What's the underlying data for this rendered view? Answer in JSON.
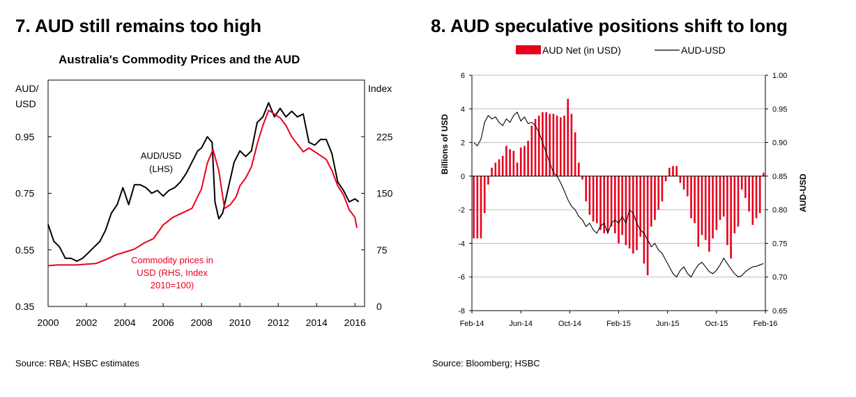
{
  "left": {
    "heading": "7. AUD still remains too high",
    "source": "Source: RBA; HSBC estimates"
  },
  "right": {
    "heading": "8. AUD speculative positions shift to long",
    "source": "Source: Bloomberg; HSBC"
  },
  "chart_data": [
    {
      "type": "line",
      "title": "Australia's Commodity Prices and the AUD",
      "y_left_label": "AUD/\nUSD",
      "y_left_label_lines": [
        "AUD/",
        "USD"
      ],
      "y_right_label": "Index",
      "xlim": [
        2000,
        2016.5
      ],
      "x_ticks": [
        "2000",
        "2002",
        "2004",
        "2006",
        "2008",
        "2010",
        "2012",
        "2014",
        "2016"
      ],
      "ylim_left": [
        0.35,
        1.15
      ],
      "y_left_ticks": [
        "0.35",
        "0.55",
        "0.75",
        "0.95"
      ],
      "ylim_right": [
        0,
        300
      ],
      "y_right_ticks": [
        "0",
        "75",
        "150",
        "225"
      ],
      "annotations": {
        "aud": [
          "AUD/USD",
          "(LHS)"
        ],
        "commodity": [
          "Commodity prices in",
          "USD (RHS, Index",
          "2010=100)"
        ]
      },
      "series": [
        {
          "name": "AUD/USD (LHS)",
          "axis": "left",
          "color": "#000000",
          "x": [
            2000.0,
            2000.3,
            2000.6,
            2000.9,
            2001.2,
            2001.5,
            2001.8,
            2002.1,
            2002.4,
            2002.7,
            2003.0,
            2003.3,
            2003.6,
            2003.9,
            2004.2,
            2004.5,
            2004.8,
            2005.1,
            2005.4,
            2005.7,
            2006.0,
            2006.3,
            2006.6,
            2006.9,
            2007.2,
            2007.5,
            2007.8,
            2008.0,
            2008.3,
            2008.55,
            2008.7,
            2008.9,
            2009.1,
            2009.4,
            2009.7,
            2010.0,
            2010.3,
            2010.6,
            2010.9,
            2011.2,
            2011.5,
            2011.8,
            2012.1,
            2012.4,
            2012.7,
            2013.0,
            2013.3,
            2013.6,
            2013.9,
            2014.2,
            2014.5,
            2014.8,
            2015.1,
            2015.4,
            2015.7,
            2016.0,
            2016.2
          ],
          "values": [
            0.64,
            0.58,
            0.56,
            0.52,
            0.52,
            0.51,
            0.52,
            0.54,
            0.56,
            0.58,
            0.62,
            0.68,
            0.71,
            0.77,
            0.71,
            0.78,
            0.78,
            0.77,
            0.75,
            0.76,
            0.74,
            0.76,
            0.77,
            0.79,
            0.82,
            0.86,
            0.9,
            0.91,
            0.95,
            0.93,
            0.72,
            0.66,
            0.68,
            0.77,
            0.86,
            0.9,
            0.88,
            0.9,
            1.0,
            1.02,
            1.07,
            1.02,
            1.05,
            1.02,
            1.04,
            1.02,
            1.03,
            0.93,
            0.92,
            0.94,
            0.94,
            0.89,
            0.79,
            0.76,
            0.72,
            0.73,
            0.72
          ]
        },
        {
          "name": "Commodity prices in USD (RHS, Index 2010=100)",
          "axis": "right",
          "color": "#e8001c",
          "x": [
            2000.0,
            2000.5,
            2001.0,
            2001.5,
            2002.0,
            2002.5,
            2003.0,
            2003.5,
            2004.0,
            2004.5,
            2005.0,
            2005.5,
            2006.0,
            2006.5,
            2007.0,
            2007.5,
            2008.0,
            2008.3,
            2008.6,
            2008.9,
            2009.2,
            2009.5,
            2009.8,
            2010.0,
            2010.3,
            2010.6,
            2010.9,
            2011.2,
            2011.5,
            2011.8,
            2012.1,
            2012.4,
            2012.7,
            2013.0,
            2013.3,
            2013.6,
            2013.9,
            2014.2,
            2014.5,
            2014.8,
            2015.1,
            2015.4,
            2015.7,
            2016.0,
            2016.1
          ],
          "values": [
            54,
            55,
            55,
            55,
            56,
            57,
            62,
            68,
            72,
            76,
            84,
            90,
            108,
            118,
            124,
            130,
            156,
            190,
            208,
            180,
            130,
            135,
            145,
            160,
            170,
            185,
            215,
            240,
            260,
            255,
            250,
            240,
            225,
            215,
            205,
            210,
            205,
            200,
            195,
            180,
            160,
            148,
            128,
            118,
            104
          ]
        }
      ]
    },
    {
      "type": "bar",
      "x_ticks": [
        "Feb-14",
        "Jun-14",
        "Oct-14",
        "Feb-15",
        "Jun-15",
        "Oct-15",
        "Feb-16"
      ],
      "y_left_label": "Billions of USD",
      "y_right_label": "AUD-USD",
      "ylim_left": [
        -8,
        6
      ],
      "y_left_ticks": [
        "6",
        "4",
        "2",
        "0",
        "-2",
        "-4",
        "-6",
        "-8"
      ],
      "ylim_right": [
        0.65,
        1.0
      ],
      "y_right_ticks": [
        "1.00",
        "0.95",
        "0.90",
        "0.85",
        "0.80",
        "0.75",
        "0.70",
        "0.65"
      ],
      "legend": {
        "placement": "top"
      },
      "series": [
        {
          "name": "AUD Net (in USD)",
          "type": "bar",
          "axis": "left",
          "color": "#e8001c",
          "values": [
            -3.7,
            -3.7,
            -3.7,
            -2.2,
            -0.5,
            0.5,
            0.8,
            1.0,
            1.2,
            1.8,
            1.6,
            1.5,
            0.8,
            1.7,
            1.8,
            2.1,
            3.0,
            3.4,
            3.6,
            3.8,
            3.8,
            3.7,
            3.7,
            3.6,
            3.5,
            3.6,
            4.6,
            3.7,
            2.6,
            0.8,
            -0.2,
            -1.5,
            -2.3,
            -2.7,
            -2.8,
            -3.2,
            -3.4,
            -3.3,
            -3.0,
            -3.4,
            -4.0,
            -3.5,
            -4.1,
            -4.3,
            -4.6,
            -4.4,
            -3.6,
            -5.2,
            -5.9,
            -3.0,
            -2.6,
            -2.0,
            -1.5,
            -0.3,
            0.5,
            0.6,
            0.6,
            -0.4,
            -0.8,
            -1.2,
            -2.5,
            -2.8,
            -4.2,
            -3.5,
            -3.8,
            -4.5,
            -3.7,
            -3.2,
            -2.6,
            -2.4,
            -4.1,
            -4.9,
            -3.4,
            -3.0,
            -0.8,
            -1.3,
            -2.1,
            -2.9,
            -2.5,
            -2.2,
            0.2
          ]
        },
        {
          "name": "AUD-USD",
          "type": "line",
          "axis": "right",
          "color": "#000000",
          "values": [
            0.9,
            0.895,
            0.905,
            0.93,
            0.94,
            0.935,
            0.938,
            0.93,
            0.925,
            0.935,
            0.93,
            0.94,
            0.945,
            0.932,
            0.938,
            0.928,
            0.93,
            0.925,
            0.915,
            0.9,
            0.885,
            0.87,
            0.855,
            0.85,
            0.84,
            0.828,
            0.815,
            0.805,
            0.8,
            0.79,
            0.785,
            0.775,
            0.78,
            0.77,
            0.765,
            0.776,
            0.78,
            0.765,
            0.78,
            0.785,
            0.78,
            0.79,
            0.78,
            0.8,
            0.795,
            0.78,
            0.77,
            0.765,
            0.755,
            0.745,
            0.75,
            0.74,
            0.735,
            0.725,
            0.715,
            0.705,
            0.7,
            0.71,
            0.715,
            0.705,
            0.7,
            0.71,
            0.718,
            0.722,
            0.715,
            0.708,
            0.705,
            0.71,
            0.718,
            0.728,
            0.72,
            0.712,
            0.705,
            0.7,
            0.702,
            0.708,
            0.712,
            0.715,
            0.716,
            0.718,
            0.72
          ]
        }
      ]
    }
  ]
}
